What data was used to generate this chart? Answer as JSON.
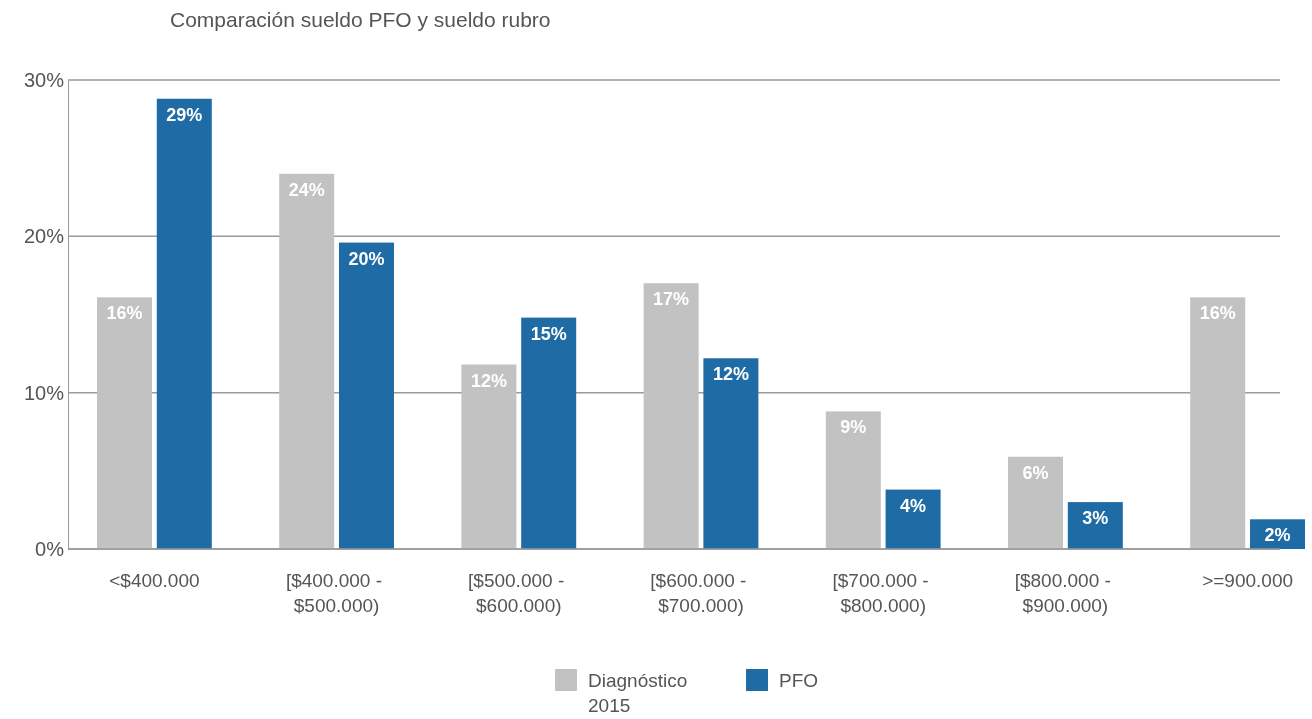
{
  "chart_data": {
    "type": "bar",
    "title": "Comparación sueldo PFO y sueldo rubro",
    "categories": [
      "<$400.000",
      "[$400.000 - $500.000)",
      "[$500.000 - $600.000)",
      "[$600.000 - $700.000)",
      "[$700.000 - $800.000)",
      "[$800.000 - $900.000)",
      ">=900.000"
    ],
    "series": [
      {
        "name": "Diagnóstico 2015",
        "color": "#c1c2c1",
        "values": [
          16.1,
          24.0,
          11.8,
          17.0,
          8.8,
          5.9,
          16.1
        ],
        "value_labels": [
          "16%",
          "24%",
          "12%",
          "17%",
          "9%",
          "6%",
          "16%"
        ]
      },
      {
        "name": "PFO",
        "color": "#1f6ba5",
        "values": [
          28.8,
          19.6,
          14.8,
          12.2,
          3.8,
          3.0,
          1.9
        ],
        "value_labels": [
          "29%",
          "20%",
          "15%",
          "12%",
          "4%",
          "3%",
          "2%"
        ]
      }
    ],
    "ylim": [
      0,
      30
    ],
    "yticks": [
      {
        "value": 0,
        "label": "0%"
      },
      {
        "value": 10,
        "label": "10%"
      },
      {
        "value": 20,
        "label": "20%"
      },
      {
        "value": 30,
        "label": "30%"
      }
    ],
    "grid": "y",
    "legend": "bottom"
  }
}
